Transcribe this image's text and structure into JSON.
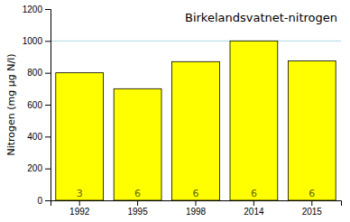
{
  "chart_data": {
    "type": "bar",
    "title": "Birkelandsvatnet-nitrogen",
    "categories": [
      "1992",
      "1995",
      "1998",
      "2014",
      "2015"
    ],
    "values": [
      800,
      700,
      870,
      1000,
      875
    ],
    "counts": [
      3,
      6,
      6,
      6,
      6
    ],
    "color": "#FFFF00",
    "ylabel": "Nitrogen (mg μg N/l)",
    "ylim": [
      0,
      1200
    ],
    "yticks": [
      0,
      200,
      400,
      600,
      800,
      1000,
      1200
    ],
    "reference_line": 1000,
    "grid": false
  }
}
